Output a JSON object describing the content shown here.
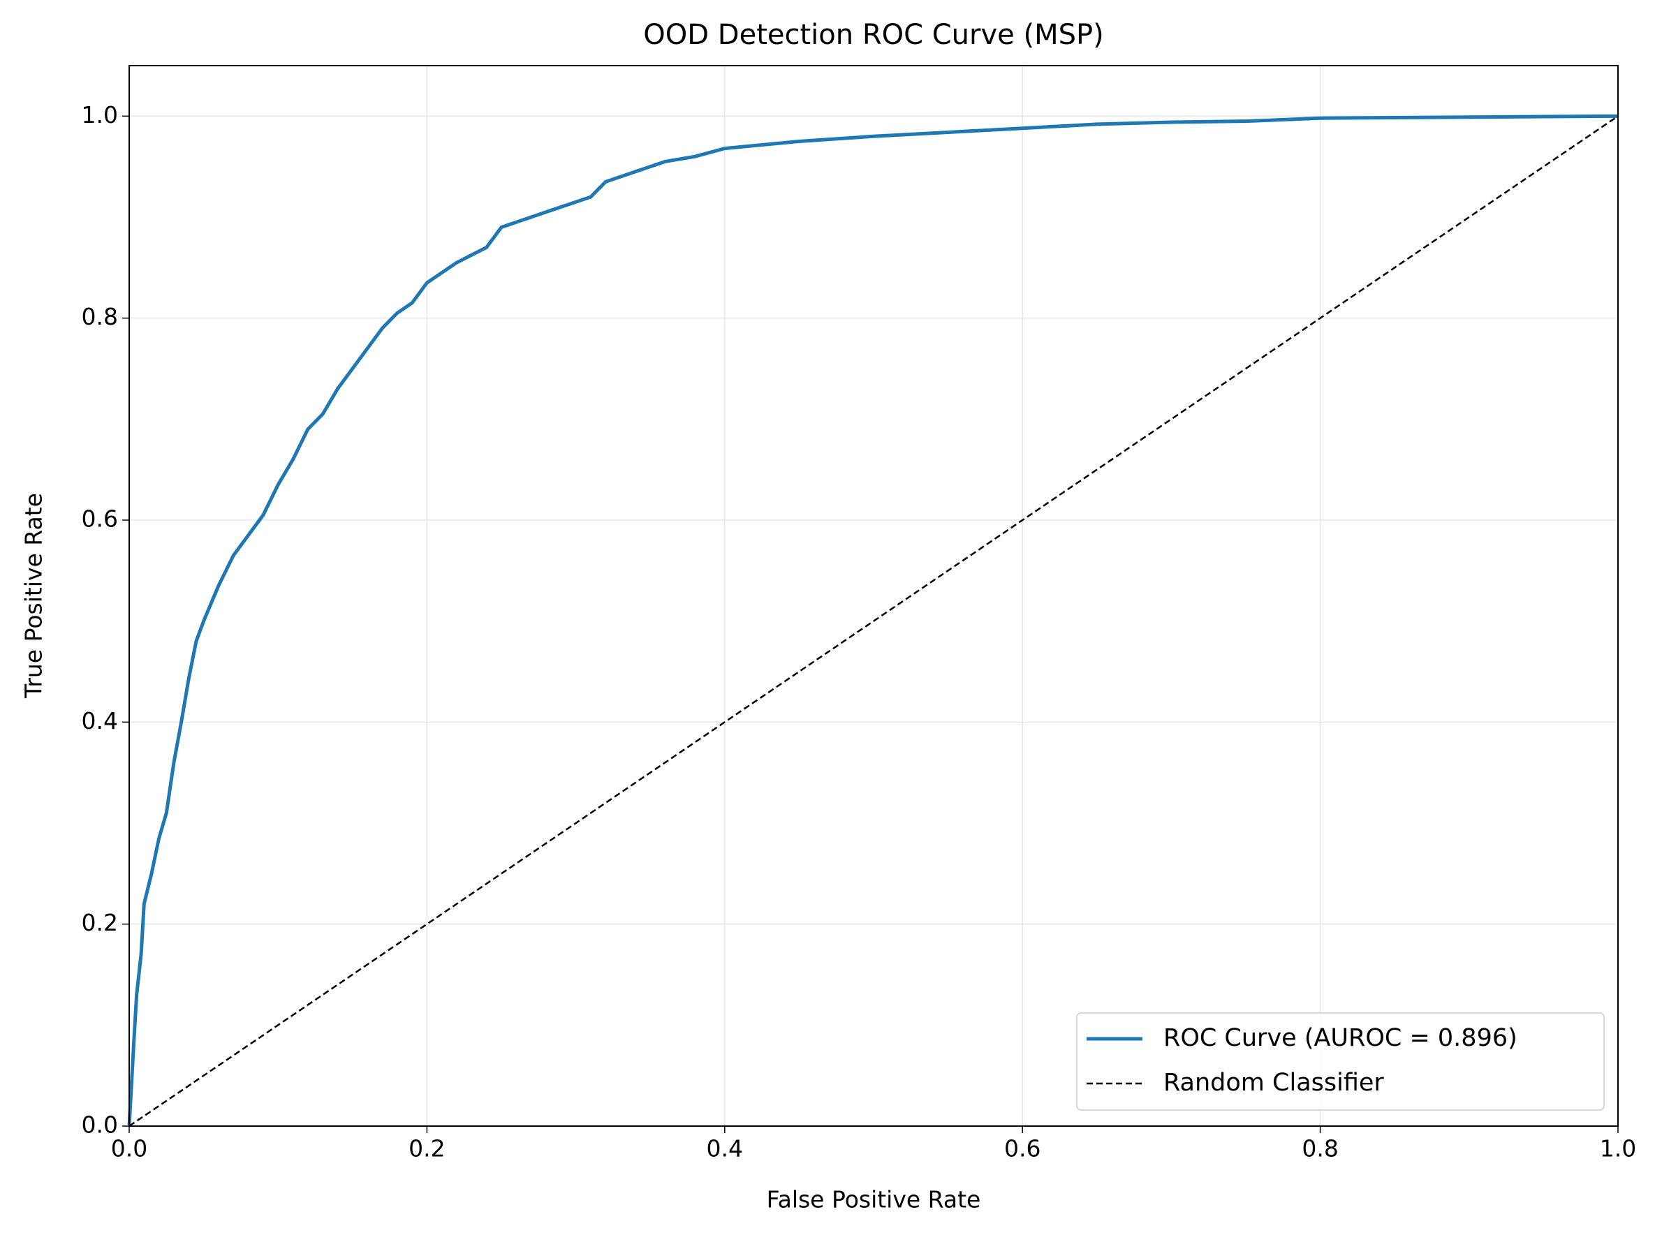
{
  "chart_data": {
    "type": "line",
    "title": "OOD Detection ROC Curve (MSP)",
    "x_label": "False Positive Rate",
    "y_label": "True Positive Rate",
    "series": [
      {
        "name": "ROC Curve (AUROC = 0.896)",
        "color": "#1f77b4",
        "style": "solid",
        "x": [
          0,
          0.003,
          0.005,
          0.008,
          0.01,
          0.015,
          0.02,
          0.025,
          0.03,
          0.035,
          0.04,
          0.045,
          0.05,
          0.06,
          0.07,
          0.08,
          0.09,
          0.1,
          0.11,
          0.12,
          0.13,
          0.14,
          0.15,
          0.16,
          0.17,
          0.18,
          0.19,
          0.2,
          0.22,
          0.24,
          0.25,
          0.27,
          0.29,
          0.31,
          0.32,
          0.34,
          0.36,
          0.38,
          0.4,
          0.45,
          0.5,
          0.55,
          0.6,
          0.65,
          0.7,
          0.75,
          0.8,
          0.9,
          1.0
        ],
        "values": [
          0,
          0.08,
          0.13,
          0.17,
          0.22,
          0.25,
          0.285,
          0.31,
          0.36,
          0.4,
          0.443,
          0.48,
          0.5,
          0.535,
          0.565,
          0.585,
          0.605,
          0.635,
          0.66,
          0.69,
          0.705,
          0.73,
          0.75,
          0.77,
          0.79,
          0.805,
          0.815,
          0.835,
          0.855,
          0.87,
          0.89,
          0.9,
          0.91,
          0.92,
          0.935,
          0.945,
          0.955,
          0.96,
          0.968,
          0.975,
          0.98,
          0.984,
          0.988,
          0.992,
          0.994,
          0.995,
          0.998,
          0.999,
          1.0
        ]
      },
      {
        "name": "Random Classifier",
        "color": "#000000",
        "style": "dashed",
        "x": [
          0,
          1
        ],
        "values": [
          0,
          1
        ]
      }
    ],
    "xlim": [
      0,
      1
    ],
    "ylim": [
      0,
      1.05
    ],
    "xticks": [
      {
        "value": 0,
        "label": "0.0"
      },
      0.2,
      0.4,
      0.6,
      0.8,
      {
        "value": 1,
        "label": "1.0"
      }
    ],
    "yticks": [
      {
        "value": 0,
        "label": "0.0"
      },
      0.2,
      0.4,
      0.6,
      0.8,
      {
        "value": 1,
        "label": "1.0"
      }
    ],
    "grid": true,
    "legend": "lower right"
  }
}
